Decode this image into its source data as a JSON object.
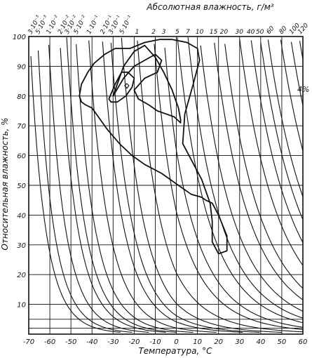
{
  "chart_data": {
    "type": "line",
    "title": "",
    "top_axis_label": "Абсолютная влажность, г/м³",
    "xlabel": "Температура, °С",
    "ylabel": "Относительная влажность, %",
    "xlim": [
      -70,
      60
    ],
    "ylim": [
      0,
      100
    ],
    "x_ticks": [
      "-70",
      "-60",
      "-50",
      "-40",
      "-30",
      "-20",
      "-10",
      "0",
      "10",
      "20",
      "30",
      "40",
      "50",
      "60"
    ],
    "y_ticks": [
      "10",
      "20",
      "30",
      "40",
      "50",
      "60",
      "70",
      "80",
      "90",
      "100"
    ],
    "absolute_humidity_labels": [
      "3·10⁻³",
      "5·10⁻³",
      "1·10⁻²",
      "2·10⁻²",
      "3·10⁻²",
      "5·10⁻²",
      "1·10⁻¹",
      "2·10⁻¹",
      "3·10⁻¹",
      "5·10⁻¹",
      "1",
      "2",
      "3",
      "5",
      "7",
      "10",
      "15",
      "20",
      "30",
      "40",
      "50",
      "60",
      "80",
      "100",
      "120"
    ],
    "absolute_humidity_values": [
      0.003,
      0.005,
      0.01,
      0.02,
      0.03,
      0.05,
      0.1,
      0.2,
      0.3,
      0.5,
      1,
      2,
      3,
      5,
      7,
      10,
      15,
      20,
      30,
      40,
      50,
      60,
      80,
      100,
      120
    ],
    "annotation": "4%",
    "series": [
      {
        "x": [
          -22,
          -15,
          -8,
          -2,
          5,
          10,
          11,
          8,
          4,
          3,
          12,
          16,
          17,
          17,
          20,
          24,
          24,
          20,
          17,
          14,
          12,
          7,
          1,
          -7,
          -15,
          -21,
          -27,
          -33,
          -37,
          -40,
          -43,
          -45,
          -46,
          -45,
          -42,
          -39,
          -34,
          -29,
          -25,
          -22
        ],
        "y": [
          96,
          98,
          99,
          99,
          98,
          96,
          92,
          84,
          74,
          64,
          52,
          44,
          38,
          31,
          27,
          28,
          33,
          40,
          44,
          45,
          46,
          47,
          50,
          54,
          57,
          60,
          64,
          69,
          73,
          76,
          77,
          78,
          80,
          84,
          88,
          91,
          94,
          96,
          96,
          96
        ]
      },
      {
        "x": [
          -30,
          -25,
          -20,
          -15,
          -10,
          -7,
          -9,
          -15,
          -20,
          -18,
          -13,
          -9,
          -5,
          -1,
          2,
          2,
          1,
          -2,
          -6,
          -10,
          -15,
          -20,
          -25,
          -30
        ],
        "y": [
          80,
          86,
          90,
          92,
          94,
          92,
          88,
          86,
          82,
          79,
          77,
          75,
          74,
          73,
          71,
          72,
          76,
          82,
          88,
          93,
          97,
          95,
          90,
          80
        ]
      },
      {
        "x": [
          -32,
          -29,
          -26,
          -23,
          -20,
          -21,
          -24,
          -28,
          -31,
          -32
        ],
        "y": [
          79,
          84,
          88,
          88,
          86,
          83,
          80,
          78,
          78,
          79
        ]
      },
      {
        "x": [
          -24.5,
          -23.5,
          -22.5,
          -23.5,
          -24.5
        ],
        "y": [
          83.5,
          84.2,
          83.5,
          82.6,
          83.5
        ]
      }
    ]
  }
}
